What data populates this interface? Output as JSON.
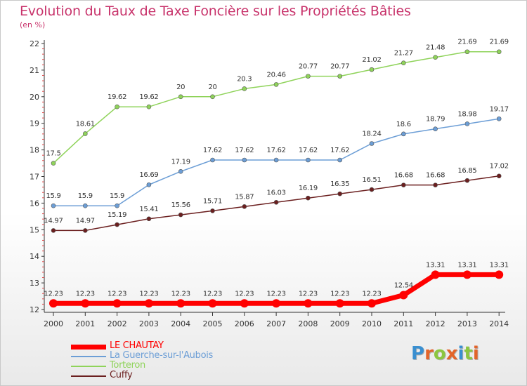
{
  "title": "Evolution du Taux de Taxe Foncière sur les Propriétés Bâties",
  "subtitle": "(en %)",
  "logo": {
    "text": "Proxiti",
    "letters": [
      {
        "ch": "P",
        "color": "#3a8fd0"
      },
      {
        "ch": "r",
        "color": "#e2642a"
      },
      {
        "ch": "o",
        "color": "#8cc63f"
      },
      {
        "ch": "x",
        "color": "#e2642a"
      },
      {
        "ch": "i",
        "color": "#3a8fd0"
      },
      {
        "ch": "t",
        "color": "#8cc63f"
      },
      {
        "ch": "i",
        "color": "#e2642a"
      }
    ]
  },
  "chart_data": {
    "type": "line",
    "x": [
      "2000",
      "2001",
      "2002",
      "2003",
      "2004",
      "2005",
      "2006",
      "2007",
      "2008",
      "2009",
      "2010",
      "2011",
      "2012",
      "2013",
      "2014"
    ],
    "ylim": [
      12,
      22
    ],
    "yticks": [
      12,
      13,
      14,
      15,
      16,
      17,
      18,
      19,
      20,
      21,
      22
    ],
    "grid": false,
    "legend": "bottom-left",
    "series": [
      {
        "name": "LE CHAUTAY",
        "color": "#ff0000",
        "values": [
          12.23,
          12.23,
          12.23,
          12.23,
          12.23,
          12.23,
          12.23,
          12.23,
          12.23,
          12.23,
          12.23,
          12.54,
          13.31,
          13.31,
          13.31
        ],
        "labels": [
          "12.23",
          "12.23",
          "12.23",
          "12.23",
          "12.23",
          "12.23",
          "12.23",
          "12.23",
          "12.23",
          "12.23",
          "12.23",
          "12.54",
          "13.31",
          "13.31",
          "13.31"
        ]
      },
      {
        "name": "La Guerche-sur-l'Aubois",
        "color": "#6c9ed6",
        "values": [
          15.9,
          15.9,
          15.9,
          16.69,
          17.19,
          17.62,
          17.62,
          17.62,
          17.62,
          17.62,
          18.24,
          18.6,
          18.79,
          18.98,
          19.17
        ],
        "labels": [
          "15.9",
          "15.9",
          "15.9",
          "16.69",
          "17.19",
          "17.62",
          "17.62",
          "17.62",
          "17.62",
          "17.62",
          "18.24",
          "18.6",
          "18.79",
          "18.98",
          "19.17"
        ]
      },
      {
        "name": "Torteron",
        "color": "#8fd35a",
        "values": [
          17.5,
          18.61,
          19.62,
          19.62,
          20,
          20,
          20.3,
          20.46,
          20.77,
          20.77,
          21.02,
          21.27,
          21.48,
          21.69,
          21.69
        ],
        "labels": [
          "17.5",
          "18.61",
          "19.62",
          "19.62",
          "20",
          "20",
          "20.3",
          "20.46",
          "20.77",
          "20.77",
          "21.02",
          "21.27",
          "21.48",
          "21.69",
          "21.69"
        ]
      },
      {
        "name": "Cuffy",
        "color": "#6b1f1f",
        "values": [
          14.97,
          14.97,
          15.19,
          15.41,
          15.56,
          15.71,
          15.87,
          16.03,
          16.19,
          16.35,
          16.51,
          16.68,
          16.68,
          16.85,
          17.02
        ],
        "labels": [
          "14.97",
          "14.97",
          "15.19",
          "15.41",
          "15.56",
          "15.71",
          "15.87",
          "16.03",
          "16.19",
          "16.35",
          "16.51",
          "16.68",
          "16.68",
          "16.85",
          "17.02"
        ]
      }
    ]
  }
}
